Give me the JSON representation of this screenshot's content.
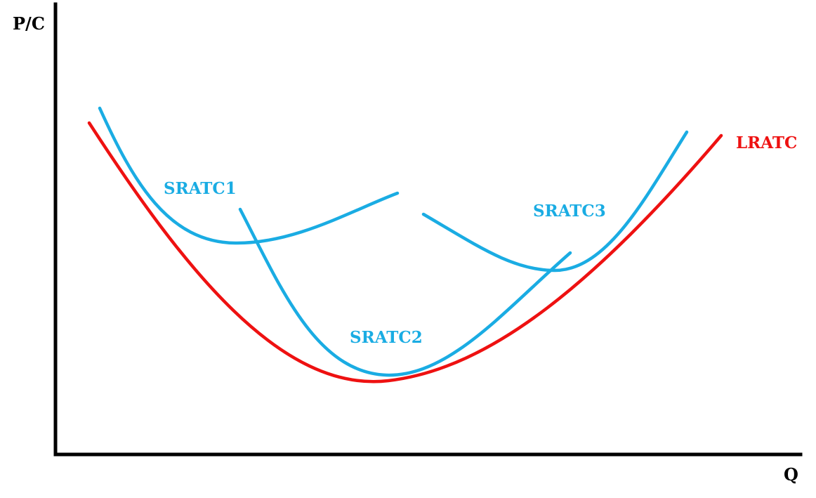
{
  "axes": {
    "y_label": "P/C",
    "x_label": "Q"
  },
  "curves": {
    "lratc": {
      "label": "LRATC",
      "color": "#ee1111"
    },
    "sratc1": {
      "label": "SRATC1",
      "color": "#1aace3"
    },
    "sratc2": {
      "label": "SRATC2",
      "color": "#1aace3"
    },
    "sratc3": {
      "label": "SRATC3",
      "color": "#1aace3"
    }
  }
}
